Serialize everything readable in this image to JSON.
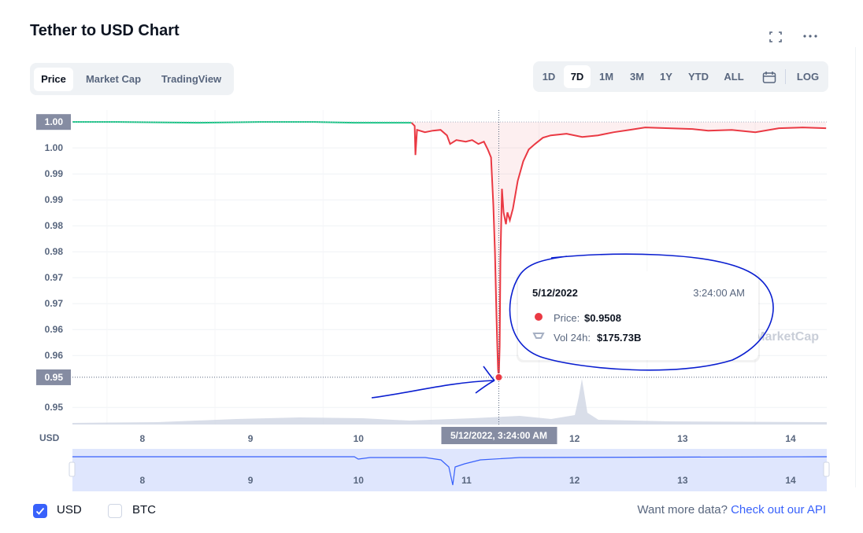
{
  "header": {
    "title": "Tether to USD Chart",
    "tabs": [
      "Price",
      "Market Cap",
      "TradingView"
    ],
    "ranges": [
      "1D",
      "7D",
      "1M",
      "3M",
      "1Y",
      "YTD",
      "ALL",
      "LOG"
    ]
  },
  "chart_data": {
    "type": "line",
    "y_unit": "USD",
    "watermark": "CoinMarketCap",
    "x": [
      7.352,
      7.774,
      8.503,
      9.085,
      9.595,
      9.959,
      10.469,
      10.491,
      10.52,
      10.527,
      10.542,
      10.615,
      10.688,
      10.76,
      10.819,
      10.848,
      10.906,
      10.993,
      11.052,
      11.11,
      11.161,
      11.197,
      11.227,
      11.248,
      11.263,
      11.277,
      11.285,
      11.292,
      11.299,
      11.307,
      11.314,
      11.328,
      11.343,
      11.365,
      11.379,
      11.401,
      11.43,
      11.474,
      11.525,
      11.576,
      11.634,
      11.707,
      11.78,
      11.926,
      12.071,
      12.217,
      12.363,
      12.508,
      12.654,
      12.873,
      13.091,
      13.237,
      13.455,
      13.674,
      13.892,
      14.111,
      14.329
    ],
    "series": [
      {
        "color": "#16c784",
        "values": [
          1.0,
          1.0,
          0.99985,
          1.0,
          1.0,
          0.99985,
          0.99985,
          0.99985,
          null,
          null,
          null,
          null,
          null,
          null,
          null,
          null,
          null,
          null,
          null,
          null,
          null,
          null,
          null,
          null,
          null,
          null,
          null,
          null,
          null,
          null,
          null,
          null,
          null,
          null,
          null,
          null,
          null,
          null,
          null,
          null,
          null,
          null,
          null,
          null,
          null,
          null,
          null,
          null,
          null,
          null,
          null,
          null,
          null,
          null,
          null,
          null,
          null
        ]
      },
      {
        "color": "#ea3943",
        "values": [
          null,
          null,
          null,
          null,
          null,
          null,
          null,
          0.99985,
          0.99924,
          0.99364,
          0.99848,
          0.99803,
          0.99833,
          0.99848,
          0.99742,
          0.99576,
          0.99652,
          0.99621,
          0.99652,
          0.99576,
          0.99621,
          0.9947,
          0.99318,
          0.98409,
          0.975,
          0.96288,
          0.95682,
          0.95227,
          0.9508,
          0.95682,
          0.97348,
          0.98712,
          0.98258,
          0.9803,
          0.98258,
          0.98106,
          0.98333,
          0.98864,
          0.99242,
          0.9947,
          0.99576,
          0.99697,
          0.99742,
          0.99773,
          0.99712,
          0.99742,
          0.99803,
          0.99848,
          0.99894,
          0.99879,
          0.99864,
          0.99833,
          0.99848,
          0.99803,
          0.99879,
          0.99894,
          0.99879
        ]
      }
    ],
    "xlim": [
      7.352,
      14.335
    ],
    "xticks": [
      8,
      9,
      10,
      11,
      12,
      13,
      14
    ],
    "ylim": [
      0.9417,
      1.0023
    ],
    "yticks": [
      {
        "value": 0.995,
        "label": "1.00"
      },
      {
        "value": 0.99,
        "label": "0.99"
      },
      {
        "value": 0.985,
        "label": "0.99"
      },
      {
        "value": 0.98,
        "label": "0.98"
      },
      {
        "value": 0.975,
        "label": "0.98"
      },
      {
        "value": 0.97,
        "label": "0.97"
      },
      {
        "value": 0.965,
        "label": "0.97"
      },
      {
        "value": 0.96,
        "label": "0.96"
      },
      {
        "value": 0.955,
        "label": "0.96"
      },
      {
        "value": 0.945,
        "label": "0.95"
      }
    ],
    "grid": true,
    "last_price": {
      "value": 1.0,
      "label": "1.00"
    },
    "crosshair": {
      "x": 11.299,
      "x_label": "5/12/2022, 3:24:00 AM",
      "y": 0.9508,
      "y_label": "0.95"
    },
    "tooltip": {
      "date": "5/12/2022",
      "time": "3:24:00 AM",
      "price_label": "Price:",
      "price": "$0.9508",
      "volume_label": "Vol 24h:",
      "volume": "$175.73B"
    }
  },
  "footer": {
    "currencies": [
      "USD",
      "BTC"
    ],
    "prompt": "Want more data?",
    "link": "Check out our API"
  }
}
